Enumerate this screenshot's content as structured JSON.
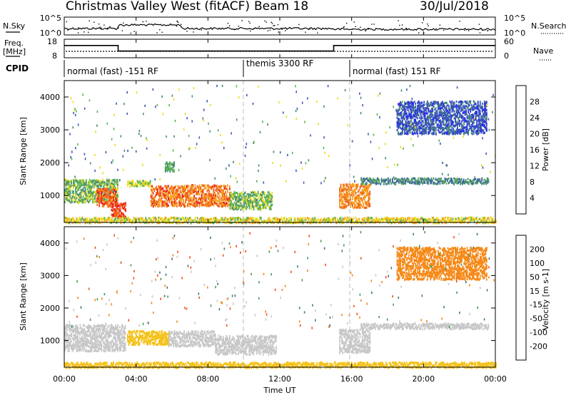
{
  "header": {
    "title": "Christmas Valley West (fitACF)",
    "beam": "Beam 18",
    "date": "30/Jul/2018"
  },
  "top_panels": {
    "nsky_label": "N.Sky",
    "nsky_ticks": [
      "10^5",
      "10^0"
    ],
    "nsearch_label": "N.Search",
    "nsearch_ticks": [
      "10^5",
      "10^0"
    ],
    "freq_label_1": "Freq.",
    "freq_label_2": "[MHz]",
    "freq_ticks": [
      "18",
      "8"
    ],
    "nave_label": "Nave",
    "nave_ticks": [
      "60",
      "0"
    ],
    "cpid_label": "CPID",
    "modes": [
      {
        "label": "normal (fast) -151 RF",
        "start_h": 0
      },
      {
        "label": "themis 3300 RF",
        "start_h": 10
      },
      {
        "label": "normal (fast) 151 RF",
        "start_h": 16
      }
    ],
    "freq_series_mhz": [
      [
        0,
        14.6
      ],
      [
        3,
        14.6
      ],
      [
        3,
        11.6
      ],
      [
        15,
        11.6
      ],
      [
        15,
        14.6
      ],
      [
        24,
        14.6
      ]
    ],
    "nave_level": 20
  },
  "axes": {
    "x_ticks": [
      "00:00",
      "04:00",
      "08:00",
      "12:00",
      "16:00",
      "20:00",
      "00:00"
    ],
    "x_label": "Time UT",
    "y_ticks": [
      "1000",
      "2000",
      "3000",
      "4000"
    ],
    "y_label": "Slant Range [km]"
  },
  "power_colorbar": {
    "label": "Power [dB]",
    "ticks": [
      "4",
      "8",
      "12",
      "16",
      "20",
      "24",
      "28"
    ],
    "colors": [
      "#2c2cf0",
      "#3d57b7",
      "#4a8a78",
      "#5fb356",
      "#eedc1e",
      "#f6a11e",
      "#f2661f",
      "#e8201b"
    ]
  },
  "velocity_colorbar": {
    "label": "Velocity [m s-1]",
    "ticks": [
      "200",
      "100",
      "50",
      "15",
      "-15",
      "-50",
      "-100",
      "-200"
    ],
    "colors": [
      "#2c3fd8",
      "#3d7a74",
      "#4d9a4f",
      "#7bd23c",
      "#c8c8c8",
      "#f4c21c",
      "#f58a1a",
      "#f24d1b",
      "#e01818"
    ]
  },
  "chart_data": {
    "type": "heatmap",
    "x_range_hours": [
      0,
      24
    ],
    "y_range_km": [
      180,
      4500
    ],
    "power_regions_db": [
      {
        "t": [
          0,
          3
        ],
        "r": [
          820,
          1520
        ],
        "value": 14
      },
      {
        "t": [
          1.8,
          2.9
        ],
        "r": [
          700,
          1250
        ],
        "value": 26
      },
      {
        "t": [
          2.6,
          3.4
        ],
        "r": [
          350,
          800
        ],
        "value": 28
      },
      {
        "t": [
          3.5,
          4.8
        ],
        "r": [
          1300,
          1480
        ],
        "value": 16
      },
      {
        "t": [
          4.8,
          9.2
        ],
        "r": [
          700,
          1350
        ],
        "value": 25
      },
      {
        "t": [
          9.2,
          11.6
        ],
        "r": [
          600,
          1150
        ],
        "value": 14
      },
      {
        "t": [
          5.6,
          6.1
        ],
        "r": [
          1750,
          2050
        ],
        "value": 12
      },
      {
        "t": [
          15.3,
          17.0
        ],
        "r": [
          650,
          1380
        ],
        "value": 24
      },
      {
        "t": [
          16.5,
          23.6
        ],
        "r": [
          1380,
          1560
        ],
        "value": 10
      },
      {
        "t": [
          18.5,
          23.5
        ],
        "r": [
          2900,
          3900
        ],
        "value": 6
      },
      {
        "t": [
          0,
          24
        ],
        "r": [
          190,
          360
        ],
        "value": 18
      }
    ],
    "velocity_regions_ms": [
      {
        "t": [
          0,
          3.4
        ],
        "r": [
          700,
          1520
        ],
        "value": 5
      },
      {
        "t": [
          3.5,
          5.8
        ],
        "r": [
          900,
          1330
        ],
        "value": -30
      },
      {
        "t": [
          5.8,
          8.4
        ],
        "r": [
          850,
          1320
        ],
        "value": 0
      },
      {
        "t": [
          8.4,
          11.8
        ],
        "r": [
          600,
          1180
        ],
        "value": 5
      },
      {
        "t": [
          15.3,
          17.0
        ],
        "r": [
          650,
          1380
        ],
        "value": 0
      },
      {
        "t": [
          16.5,
          23.6
        ],
        "r": [
          1380,
          1560
        ],
        "value": 5
      },
      {
        "t": [
          18.5,
          23.5
        ],
        "r": [
          2900,
          3900
        ],
        "value": -60
      },
      {
        "t": [
          0,
          24
        ],
        "r": [
          190,
          360
        ],
        "value": -20
      }
    ]
  }
}
